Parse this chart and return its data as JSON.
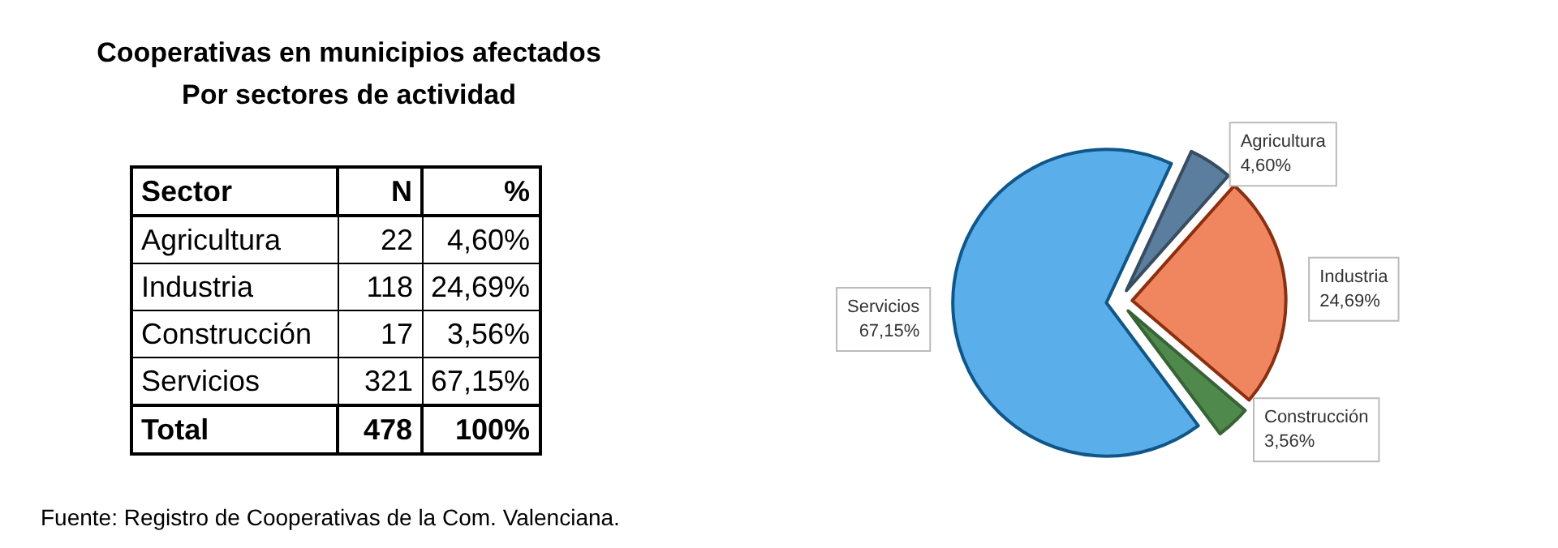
{
  "chart_data": {
    "type": "pie",
    "title": "Cooperativas en municipios afectados\nPor sectores de actividad",
    "categories": [
      "Agricultura",
      "Industria",
      "Construcción",
      "Servicios"
    ],
    "values": [
      4.6,
      24.69,
      3.56,
      67.15
    ],
    "value_labels": [
      "4,60%",
      "24,69%",
      "3,56%",
      "67,15%"
    ],
    "colors": [
      "#5b7d9e",
      "#ef8660",
      "#4f8a4c",
      "#5aaeea"
    ],
    "totals": [
      "478",
      "100%"
    ],
    "annotations": [
      "Sector",
      "N",
      "%",
      "Total",
      "Fuente: Registro de Cooperativas de la Com. Valenciana.",
      "22",
      "118",
      "17",
      "321"
    ],
    "legend": false
  }
}
